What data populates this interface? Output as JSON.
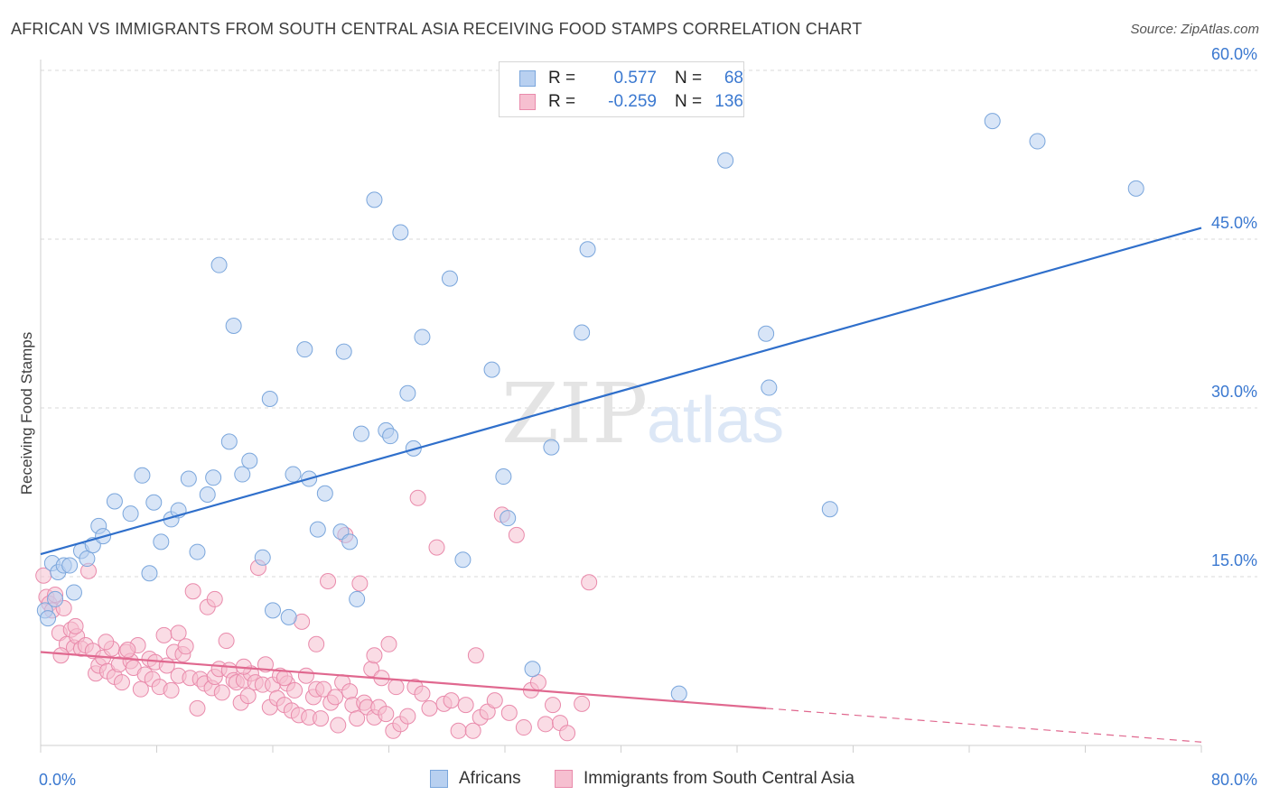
{
  "title": "AFRICAN VS IMMIGRANTS FROM SOUTH CENTRAL ASIA RECEIVING FOOD STAMPS CORRELATION CHART",
  "source": "Source: ZipAtlas.com",
  "watermark": {
    "part1": "ZIP",
    "part2": "atlas"
  },
  "legend_top": {
    "rows": [
      {
        "r_label": "R =",
        "r_value": "0.577",
        "n_label": "N =",
        "n_value": "68"
      },
      {
        "r_label": "R =",
        "r_value": "-0.259",
        "n_label": "N =",
        "n_value": "136"
      }
    ]
  },
  "legend_bottom": {
    "africans": "Africans",
    "immigrants": "Immigrants from South Central Asia"
  },
  "colors": {
    "blue_fill": "#b8d0f0",
    "blue_stroke": "#7aa6dc",
    "blue_line": "#2f6fcb",
    "pink_fill": "#f6bfd0",
    "pink_stroke": "#e98aab",
    "pink_line": "#e0688f",
    "axis_text": "#3a78d0",
    "grid": "#d9d9d9"
  },
  "chart_data": {
    "type": "scatter",
    "title": "AFRICAN VS IMMIGRANTS FROM SOUTH CENTRAL ASIA RECEIVING FOOD STAMPS CORRELATION CHART",
    "xlabel": "",
    "ylabel": "Receiving Food Stamps",
    "xlim": [
      0,
      80
    ],
    "ylim": [
      0,
      60
    ],
    "x_tick_labels": [
      "0.0%",
      "80.0%"
    ],
    "y_tick_labels": [
      "15.0%",
      "30.0%",
      "45.0%",
      "60.0%"
    ],
    "y_ticks": [
      15,
      30,
      45,
      60
    ],
    "grid": true,
    "legend_position": "bottom",
    "series": [
      {
        "name": "Africans",
        "R": 0.577,
        "N": 68,
        "trend": {
          "x": [
            0,
            80
          ],
          "y": [
            17.0,
            46.0
          ],
          "style": "solid"
        },
        "points": [
          [
            0.3,
            12.0
          ],
          [
            0.8,
            16.2
          ],
          [
            1.2,
            15.4
          ],
          [
            1.6,
            16.0
          ],
          [
            2.3,
            13.6
          ],
          [
            2.8,
            17.3
          ],
          [
            3.2,
            16.6
          ],
          [
            3.6,
            17.8
          ],
          [
            4.0,
            19.5
          ],
          [
            4.3,
            18.6
          ],
          [
            5.1,
            21.7
          ],
          [
            6.2,
            20.6
          ],
          [
            7.0,
            24.0
          ],
          [
            7.5,
            15.3
          ],
          [
            7.8,
            21.6
          ],
          [
            8.3,
            18.1
          ],
          [
            9.0,
            20.1
          ],
          [
            9.5,
            20.9
          ],
          [
            10.2,
            23.7
          ],
          [
            10.8,
            17.2
          ],
          [
            11.5,
            22.3
          ],
          [
            11.9,
            23.8
          ],
          [
            12.3,
            42.7
          ],
          [
            13.0,
            27.0
          ],
          [
            13.3,
            37.3
          ],
          [
            13.9,
            24.1
          ],
          [
            14.4,
            25.3
          ],
          [
            15.3,
            16.7
          ],
          [
            15.8,
            30.8
          ],
          [
            16.0,
            12.0
          ],
          [
            17.1,
            11.4
          ],
          [
            17.4,
            24.1
          ],
          [
            18.2,
            35.2
          ],
          [
            18.5,
            23.7
          ],
          [
            19.1,
            19.2
          ],
          [
            19.6,
            22.4
          ],
          [
            20.7,
            19.0
          ],
          [
            20.9,
            35.0
          ],
          [
            21.3,
            18.1
          ],
          [
            21.8,
            13.0
          ],
          [
            22.1,
            27.7
          ],
          [
            23.0,
            48.5
          ],
          [
            23.8,
            28.0
          ],
          [
            24.1,
            27.5
          ],
          [
            24.8,
            45.6
          ],
          [
            25.3,
            31.3
          ],
          [
            25.7,
            26.4
          ],
          [
            26.3,
            36.3
          ],
          [
            28.2,
            41.5
          ],
          [
            29.1,
            16.5
          ],
          [
            31.1,
            33.4
          ],
          [
            31.9,
            23.9
          ],
          [
            32.2,
            20.2
          ],
          [
            33.9,
            6.8
          ],
          [
            35.2,
            26.5
          ],
          [
            37.3,
            36.7
          ],
          [
            37.7,
            44.1
          ],
          [
            44.0,
            4.6
          ],
          [
            47.2,
            52.0
          ],
          [
            50.0,
            36.6
          ],
          [
            50.2,
            31.8
          ],
          [
            54.4,
            21.0
          ],
          [
            65.6,
            55.5
          ],
          [
            68.7,
            53.7
          ],
          [
            75.5,
            49.5
          ],
          [
            0.5,
            11.3
          ],
          [
            1.0,
            13.0
          ],
          [
            2.0,
            16.0
          ]
        ]
      },
      {
        "name": "Immigrants from South Central Asia",
        "R": -0.259,
        "N": 136,
        "trend": {
          "x": [
            0,
            50,
            80
          ],
          "y": [
            8.3,
            3.3,
            0.3
          ],
          "style": "solid-then-dashed"
        },
        "points": [
          [
            0.2,
            15.1
          ],
          [
            0.4,
            13.2
          ],
          [
            0.6,
            12.6
          ],
          [
            0.8,
            12.0
          ],
          [
            1.0,
            13.4
          ],
          [
            1.3,
            10.0
          ],
          [
            1.6,
            12.2
          ],
          [
            1.8,
            9.0
          ],
          [
            2.1,
            10.3
          ],
          [
            2.3,
            8.7
          ],
          [
            2.5,
            9.7
          ],
          [
            2.8,
            8.6
          ],
          [
            3.1,
            8.9
          ],
          [
            3.3,
            15.5
          ],
          [
            3.6,
            8.4
          ],
          [
            3.8,
            6.4
          ],
          [
            4.0,
            7.1
          ],
          [
            4.3,
            7.8
          ],
          [
            4.6,
            6.6
          ],
          [
            4.9,
            8.6
          ],
          [
            5.1,
            6.1
          ],
          [
            5.4,
            7.2
          ],
          [
            5.6,
            5.6
          ],
          [
            5.9,
            8.3
          ],
          [
            6.2,
            7.5
          ],
          [
            6.4,
            6.9
          ],
          [
            6.7,
            8.9
          ],
          [
            6.9,
            5.0
          ],
          [
            7.2,
            6.3
          ],
          [
            7.5,
            7.7
          ],
          [
            7.7,
            5.9
          ],
          [
            7.9,
            7.4
          ],
          [
            8.2,
            5.2
          ],
          [
            8.5,
            9.8
          ],
          [
            8.7,
            7.1
          ],
          [
            9.0,
            4.9
          ],
          [
            9.2,
            8.3
          ],
          [
            9.5,
            6.2
          ],
          [
            9.8,
            8.1
          ],
          [
            10.0,
            8.8
          ],
          [
            10.3,
            6.0
          ],
          [
            10.5,
            13.7
          ],
          [
            10.8,
            3.3
          ],
          [
            11.0,
            5.9
          ],
          [
            11.3,
            5.5
          ],
          [
            11.5,
            12.3
          ],
          [
            11.8,
            5.1
          ],
          [
            12.0,
            6.1
          ],
          [
            12.3,
            6.8
          ],
          [
            12.5,
            4.7
          ],
          [
            12.8,
            9.3
          ],
          [
            13.0,
            6.7
          ],
          [
            13.3,
            5.8
          ],
          [
            13.5,
            5.6
          ],
          [
            13.8,
            3.8
          ],
          [
            14.0,
            5.8
          ],
          [
            14.3,
            4.4
          ],
          [
            14.5,
            6.4
          ],
          [
            14.8,
            5.6
          ],
          [
            15.0,
            15.8
          ],
          [
            15.3,
            5.4
          ],
          [
            15.5,
            7.2
          ],
          [
            15.8,
            3.4
          ],
          [
            16.0,
            5.4
          ],
          [
            16.3,
            4.2
          ],
          [
            16.5,
            6.2
          ],
          [
            16.8,
            3.6
          ],
          [
            17.0,
            5.5
          ],
          [
            17.3,
            3.1
          ],
          [
            17.5,
            4.9
          ],
          [
            17.8,
            2.7
          ],
          [
            18.0,
            11.0
          ],
          [
            18.3,
            6.2
          ],
          [
            18.5,
            2.5
          ],
          [
            18.8,
            4.3
          ],
          [
            19.0,
            5.0
          ],
          [
            19.3,
            2.4
          ],
          [
            19.5,
            5.0
          ],
          [
            19.8,
            14.6
          ],
          [
            20.0,
            3.8
          ],
          [
            20.3,
            4.3
          ],
          [
            20.5,
            1.8
          ],
          [
            20.8,
            5.6
          ],
          [
            21.0,
            18.7
          ],
          [
            21.3,
            4.8
          ],
          [
            21.5,
            3.6
          ],
          [
            21.8,
            2.4
          ],
          [
            22.0,
            14.4
          ],
          [
            22.3,
            3.8
          ],
          [
            22.5,
            3.4
          ],
          [
            22.8,
            6.8
          ],
          [
            23.0,
            2.5
          ],
          [
            23.3,
            3.4
          ],
          [
            23.5,
            6.0
          ],
          [
            23.8,
            2.8
          ],
          [
            24.0,
            9.0
          ],
          [
            24.3,
            1.3
          ],
          [
            24.5,
            5.2
          ],
          [
            24.8,
            1.9
          ],
          [
            25.3,
            2.6
          ],
          [
            25.8,
            5.2
          ],
          [
            26.3,
            4.6
          ],
          [
            26.8,
            3.3
          ],
          [
            27.3,
            17.6
          ],
          [
            27.8,
            3.7
          ],
          [
            28.3,
            4.0
          ],
          [
            28.8,
            1.3
          ],
          [
            29.3,
            3.6
          ],
          [
            29.8,
            1.3
          ],
          [
            30.3,
            2.5
          ],
          [
            30.8,
            3.0
          ],
          [
            31.3,
            4.0
          ],
          [
            31.8,
            20.5
          ],
          [
            32.3,
            2.9
          ],
          [
            32.8,
            18.7
          ],
          [
            33.3,
            1.6
          ],
          [
            33.8,
            4.9
          ],
          [
            34.3,
            5.6
          ],
          [
            34.8,
            1.9
          ],
          [
            35.3,
            3.6
          ],
          [
            35.8,
            2.0
          ],
          [
            36.3,
            1.1
          ],
          [
            37.3,
            3.7
          ],
          [
            37.8,
            14.5
          ],
          [
            26.0,
            22.0
          ],
          [
            16.8,
            6.0
          ],
          [
            12.0,
            13.0
          ],
          [
            23.0,
            8.0
          ],
          [
            30.0,
            8.0
          ],
          [
            14.0,
            7.0
          ],
          [
            19.0,
            9.0
          ],
          [
            9.5,
            10.0
          ],
          [
            6.0,
            8.5
          ],
          [
            4.5,
            9.2
          ],
          [
            2.4,
            10.6
          ],
          [
            1.4,
            8.0
          ]
        ]
      }
    ]
  }
}
